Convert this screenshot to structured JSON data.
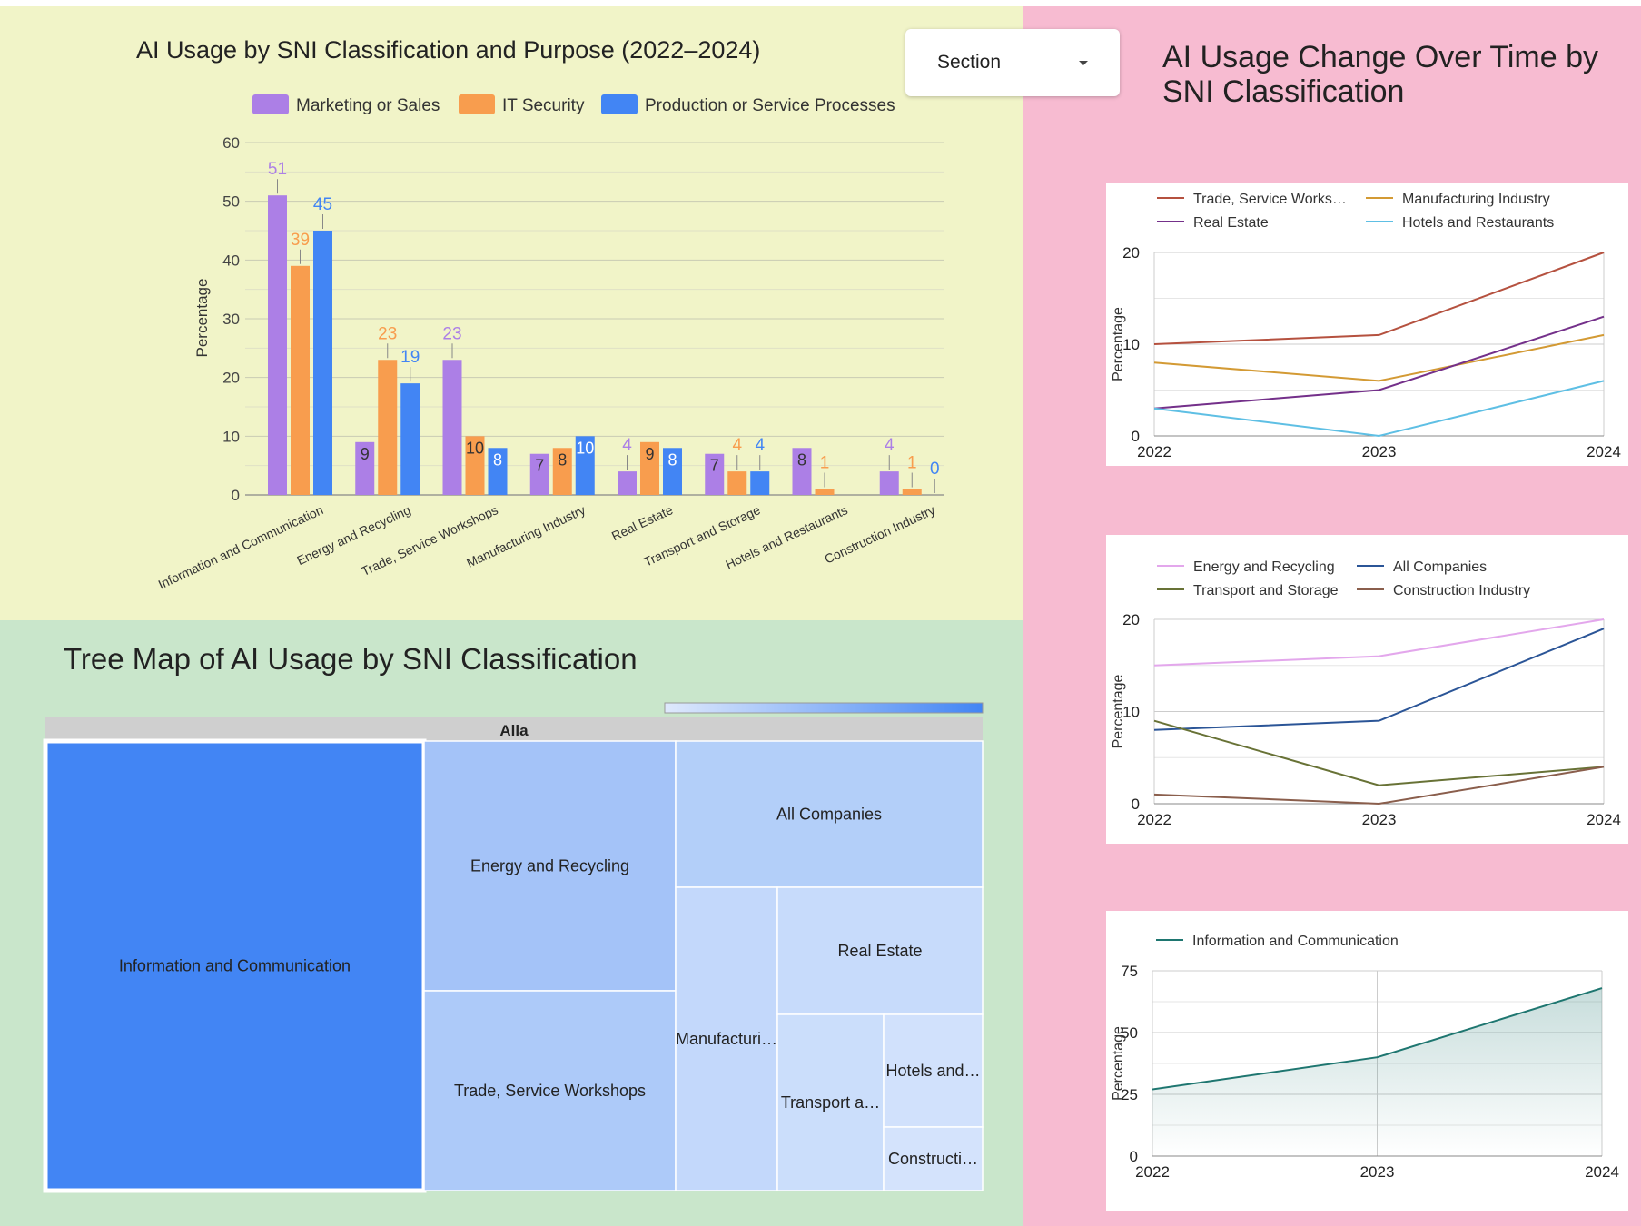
{
  "bar_panel": {
    "title": "AI Usage by SNI Classification and Purpose (2022–2024)",
    "section_control": {
      "label": "Section"
    }
  },
  "tree_panel": {
    "title": "Tree Map of AI Usage by SNI Classification"
  },
  "lines_panel": {
    "title_line1": "AI Usage Change Over Time by",
    "title_line2": "SNI Classification"
  },
  "colors": {
    "marketing": "#ac7fe6",
    "it_security": "#f89d4e",
    "production": "#4285f4",
    "trade": "#b5513f",
    "manufacturing": "#d39a34",
    "real_estate": "#74308a",
    "hotels": "#5ebfe4",
    "energy": "#e3a7ec",
    "all_companies": "#2b5597",
    "transport": "#687236",
    "construction": "#8a5e4c",
    "information": "#1e7670"
  },
  "chart_data": [
    {
      "type": "bar",
      "title": "AI Usage by SNI Classification and Purpose (2022–2024)",
      "ylabel": "Percentage",
      "ylim": [
        0,
        60
      ],
      "yticks": [
        0,
        10,
        20,
        30,
        40,
        50,
        60
      ],
      "legend_position": "top",
      "grid": true,
      "categories": [
        "Information and Communication",
        "Energy and Recycling",
        "Trade, Service Workshops",
        "Manufacturing Industry",
        "Real Estate",
        "Transport and Storage",
        "Hotels and Restaurants",
        "Construction Industry"
      ],
      "series": [
        {
          "name": "Marketing or Sales",
          "values": [
            51,
            9,
            23,
            7,
            4,
            7,
            8,
            4
          ],
          "labels": [
            "51",
            "9",
            "23",
            "7",
            "4",
            "7",
            "8",
            "4"
          ]
        },
        {
          "name": "IT Security",
          "values": [
            39,
            23,
            10,
            8,
            9,
            4,
            1,
            1
          ],
          "labels": [
            "39",
            "23",
            "10",
            "8",
            "9",
            "4",
            "1",
            "1"
          ]
        },
        {
          "name": "Production or Service Processes",
          "values": [
            45,
            19,
            8,
            10,
            8,
            4,
            0,
            0
          ],
          "labels": [
            "45",
            "19",
            "8",
            "10",
            "8",
            "4",
            "",
            "0"
          ]
        }
      ]
    },
    {
      "type": "treemap",
      "root": "Alla",
      "nodes": [
        {
          "label": "Information and Communication",
          "color": "#4285f4"
        },
        {
          "label": "Energy and Recycling",
          "color": "#a4c3f8"
        },
        {
          "label": "Trade, Service Workshops",
          "color": "#adcaf9"
        },
        {
          "label": "All Companies",
          "color": "#b3cff9"
        },
        {
          "label": "Manufacturi…",
          "color": "#c3d8fb"
        },
        {
          "label": "Real Estate",
          "color": "#c7dbfb"
        },
        {
          "label": "Transport a…",
          "color": "#cbdefb"
        },
        {
          "label": "Hotels and…",
          "color": "#d1e1fc"
        },
        {
          "label": "Constructi…",
          "color": "#d4e3fc"
        }
      ]
    },
    {
      "type": "line",
      "ylabel": "Percentage",
      "x": [
        "2022",
        "2023",
        "2024"
      ],
      "ylim": [
        0,
        20
      ],
      "yticks": [
        0,
        10,
        20
      ],
      "legend_position": "top",
      "series": [
        {
          "name": "Trade, Service Works…",
          "color_key": "trade",
          "values": [
            10,
            11,
            20
          ]
        },
        {
          "name": "Manufacturing Industry",
          "color_key": "manufacturing",
          "values": [
            8,
            6,
            11
          ]
        },
        {
          "name": "Real Estate",
          "color_key": "real_estate",
          "values": [
            3,
            5,
            13
          ]
        },
        {
          "name": "Hotels and Restaurants",
          "color_key": "hotels",
          "values": [
            3,
            0,
            6
          ]
        }
      ]
    },
    {
      "type": "line",
      "ylabel": "Percentage",
      "x": [
        "2022",
        "2023",
        "2024"
      ],
      "ylim": [
        0,
        20
      ],
      "yticks": [
        0,
        10,
        20
      ],
      "legend_position": "top",
      "series": [
        {
          "name": "Energy and Recycling",
          "color_key": "energy",
          "values": [
            15,
            16,
            20
          ]
        },
        {
          "name": "All Companies",
          "color_key": "all_companies",
          "values": [
            8,
            9,
            19
          ]
        },
        {
          "name": "Transport and Storage",
          "color_key": "transport",
          "values": [
            9,
            2,
            4
          ]
        },
        {
          "name": "Construction Industry",
          "color_key": "construction",
          "values": [
            1,
            0,
            4
          ]
        }
      ]
    },
    {
      "type": "area",
      "ylabel": "Percentage",
      "x": [
        "2022",
        "2023",
        "2024"
      ],
      "ylim": [
        0,
        75
      ],
      "yticks": [
        0,
        25,
        50,
        75
      ],
      "legend_position": "top",
      "series": [
        {
          "name": "Information and Communication",
          "color_key": "information",
          "values": [
            27,
            40,
            68
          ]
        }
      ]
    }
  ]
}
